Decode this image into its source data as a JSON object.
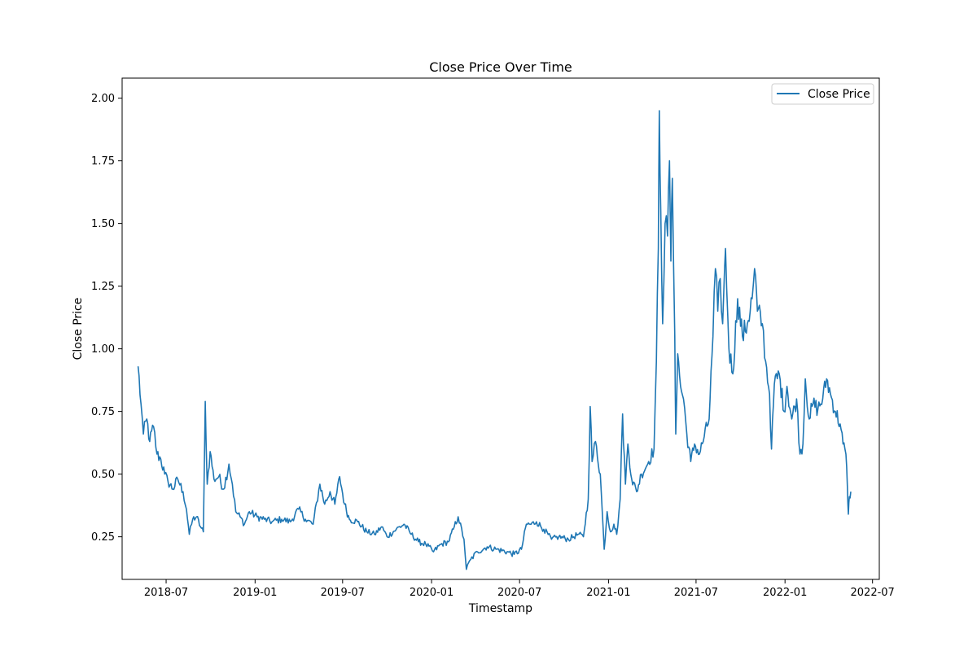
{
  "chart_data": {
    "type": "line",
    "title": "Close Price Over Time",
    "xlabel": "Timestamp",
    "ylabel": "Close Price",
    "legend": {
      "placement": "top-right",
      "entries": [
        "Close Price"
      ]
    },
    "grid": false,
    "xlim": [
      "2018-04-01",
      "2022-07-15"
    ],
    "ylim": [
      0.08,
      2.08
    ],
    "x_tick_labels": [
      "2018-07",
      "2019-01",
      "2019-07",
      "2020-01",
      "2020-07",
      "2021-01",
      "2021-07",
      "2022-01",
      "2022-07"
    ],
    "y_tick_labels": [
      "0.25",
      "0.50",
      "0.75",
      "1.00",
      "1.25",
      "1.50",
      "1.75",
      "2.00"
    ],
    "series": [
      {
        "name": "Close Price",
        "color": "#1f77b4",
        "points": [
          [
            "2018-05-04",
            0.93
          ],
          [
            "2018-05-10",
            0.78
          ],
          [
            "2018-05-15",
            0.66
          ],
          [
            "2018-05-22",
            0.72
          ],
          [
            "2018-05-28",
            0.63
          ],
          [
            "2018-06-05",
            0.69
          ],
          [
            "2018-06-12",
            0.58
          ],
          [
            "2018-06-20",
            0.56
          ],
          [
            "2018-06-28",
            0.5
          ],
          [
            "2018-07-05",
            0.47
          ],
          [
            "2018-07-15",
            0.44
          ],
          [
            "2018-07-25",
            0.48
          ],
          [
            "2018-08-05",
            0.43
          ],
          [
            "2018-08-12",
            0.36
          ],
          [
            "2018-08-18",
            0.26
          ],
          [
            "2018-08-25",
            0.32
          ],
          [
            "2018-09-02",
            0.33
          ],
          [
            "2018-09-10",
            0.29
          ],
          [
            "2018-09-16",
            0.27
          ],
          [
            "2018-09-20",
            0.79
          ],
          [
            "2018-09-24",
            0.46
          ],
          [
            "2018-09-30",
            0.59
          ],
          [
            "2018-10-08",
            0.48
          ],
          [
            "2018-10-18",
            0.49
          ],
          [
            "2018-10-28",
            0.44
          ],
          [
            "2018-11-08",
            0.54
          ],
          [
            "2018-11-15",
            0.46
          ],
          [
            "2018-11-22",
            0.35
          ],
          [
            "2018-12-01",
            0.33
          ],
          [
            "2018-12-10",
            0.3
          ],
          [
            "2018-12-20",
            0.35
          ],
          [
            "2019-01-05",
            0.33
          ],
          [
            "2019-01-20",
            0.32
          ],
          [
            "2019-02-05",
            0.31
          ],
          [
            "2019-02-25",
            0.32
          ],
          [
            "2019-03-15",
            0.31
          ],
          [
            "2019-04-01",
            0.36
          ],
          [
            "2019-04-15",
            0.32
          ],
          [
            "2019-05-01",
            0.3
          ],
          [
            "2019-05-15",
            0.46
          ],
          [
            "2019-05-25",
            0.38
          ],
          [
            "2019-06-05",
            0.43
          ],
          [
            "2019-06-15",
            0.38
          ],
          [
            "2019-06-25",
            0.49
          ],
          [
            "2019-07-05",
            0.38
          ],
          [
            "2019-07-15",
            0.32
          ],
          [
            "2019-08-01",
            0.31
          ],
          [
            "2019-08-20",
            0.27
          ],
          [
            "2019-09-05",
            0.26
          ],
          [
            "2019-09-20",
            0.29
          ],
          [
            "2019-10-01",
            0.25
          ],
          [
            "2019-10-20",
            0.28
          ],
          [
            "2019-11-05",
            0.3
          ],
          [
            "2019-11-20",
            0.26
          ],
          [
            "2019-12-05",
            0.23
          ],
          [
            "2019-12-20",
            0.22
          ],
          [
            "2020-01-05",
            0.19
          ],
          [
            "2020-01-20",
            0.22
          ],
          [
            "2020-02-05",
            0.23
          ],
          [
            "2020-02-15",
            0.28
          ],
          [
            "2020-02-25",
            0.33
          ],
          [
            "2020-03-08",
            0.24
          ],
          [
            "2020-03-13",
            0.12
          ],
          [
            "2020-03-22",
            0.16
          ],
          [
            "2020-04-05",
            0.19
          ],
          [
            "2020-04-25",
            0.21
          ],
          [
            "2020-05-15",
            0.2
          ],
          [
            "2020-06-05",
            0.19
          ],
          [
            "2020-06-20",
            0.18
          ],
          [
            "2020-07-05",
            0.2
          ],
          [
            "2020-07-15",
            0.3
          ],
          [
            "2020-07-25",
            0.3
          ],
          [
            "2020-08-05",
            0.31
          ],
          [
            "2020-08-20",
            0.28
          ],
          [
            "2020-09-05",
            0.24
          ],
          [
            "2020-09-20",
            0.25
          ],
          [
            "2020-10-10",
            0.24
          ],
          [
            "2020-10-30",
            0.26
          ],
          [
            "2020-11-10",
            0.25
          ],
          [
            "2020-11-20",
            0.4
          ],
          [
            "2020-11-24",
            0.77
          ],
          [
            "2020-11-28",
            0.55
          ],
          [
            "2020-12-05",
            0.63
          ],
          [
            "2020-12-15",
            0.5
          ],
          [
            "2020-12-23",
            0.2
          ],
          [
            "2020-12-29",
            0.35
          ],
          [
            "2021-01-05",
            0.27
          ],
          [
            "2021-01-12",
            0.3
          ],
          [
            "2021-01-18",
            0.26
          ],
          [
            "2021-01-25",
            0.4
          ],
          [
            "2021-01-30",
            0.74
          ],
          [
            "2021-02-05",
            0.46
          ],
          [
            "2021-02-10",
            0.62
          ],
          [
            "2021-02-18",
            0.48
          ],
          [
            "2021-02-28",
            0.43
          ],
          [
            "2021-03-10",
            0.5
          ],
          [
            "2021-03-25",
            0.55
          ],
          [
            "2021-04-05",
            0.6
          ],
          [
            "2021-04-10",
            0.95
          ],
          [
            "2021-04-14",
            1.4
          ],
          [
            "2021-04-16",
            1.95
          ],
          [
            "2021-04-19",
            1.55
          ],
          [
            "2021-04-23",
            1.1
          ],
          [
            "2021-04-28",
            1.5
          ],
          [
            "2021-05-03",
            1.45
          ],
          [
            "2021-05-07",
            1.75
          ],
          [
            "2021-05-10",
            1.35
          ],
          [
            "2021-05-13",
            1.68
          ],
          [
            "2021-05-18",
            1.05
          ],
          [
            "2021-05-20",
            0.66
          ],
          [
            "2021-05-24",
            0.98
          ],
          [
            "2021-05-30",
            0.85
          ],
          [
            "2021-06-05",
            0.8
          ],
          [
            "2021-06-12",
            0.66
          ],
          [
            "2021-06-20",
            0.55
          ],
          [
            "2021-06-28",
            0.62
          ],
          [
            "2021-07-08",
            0.58
          ],
          [
            "2021-07-18",
            0.65
          ],
          [
            "2021-07-28",
            0.72
          ],
          [
            "2021-08-05",
            1.05
          ],
          [
            "2021-08-10",
            1.32
          ],
          [
            "2021-08-15",
            1.15
          ],
          [
            "2021-08-20",
            1.28
          ],
          [
            "2021-08-25",
            1.1
          ],
          [
            "2021-08-31",
            1.4
          ],
          [
            "2021-09-07",
            1.0
          ],
          [
            "2021-09-15",
            0.9
          ],
          [
            "2021-09-25",
            1.2
          ],
          [
            "2021-10-05",
            1.05
          ],
          [
            "2021-10-15",
            1.1
          ],
          [
            "2021-10-25",
            1.2
          ],
          [
            "2021-10-30",
            1.32
          ],
          [
            "2021-11-05",
            1.15
          ],
          [
            "2021-11-15",
            1.1
          ],
          [
            "2021-11-22",
            0.95
          ],
          [
            "2021-11-30",
            0.82
          ],
          [
            "2021-12-04",
            0.6
          ],
          [
            "2021-12-10",
            0.86
          ],
          [
            "2021-12-20",
            0.9
          ],
          [
            "2021-12-30",
            0.75
          ],
          [
            "2022-01-05",
            0.85
          ],
          [
            "2022-01-15",
            0.72
          ],
          [
            "2022-01-25",
            0.8
          ],
          [
            "2022-02-01",
            0.58
          ],
          [
            "2022-02-07",
            0.62
          ],
          [
            "2022-02-12",
            0.88
          ],
          [
            "2022-02-20",
            0.72
          ],
          [
            "2022-02-28",
            0.78
          ],
          [
            "2022-03-10",
            0.76
          ],
          [
            "2022-03-20",
            0.8
          ],
          [
            "2022-03-28",
            0.88
          ],
          [
            "2022-04-05",
            0.82
          ],
          [
            "2022-04-15",
            0.75
          ],
          [
            "2022-04-25",
            0.7
          ],
          [
            "2022-05-01",
            0.62
          ],
          [
            "2022-05-07",
            0.58
          ],
          [
            "2022-05-10",
            0.45
          ],
          [
            "2022-05-12",
            0.34
          ],
          [
            "2022-05-14",
            0.41
          ],
          [
            "2022-05-17",
            0.43
          ]
        ]
      }
    ]
  }
}
